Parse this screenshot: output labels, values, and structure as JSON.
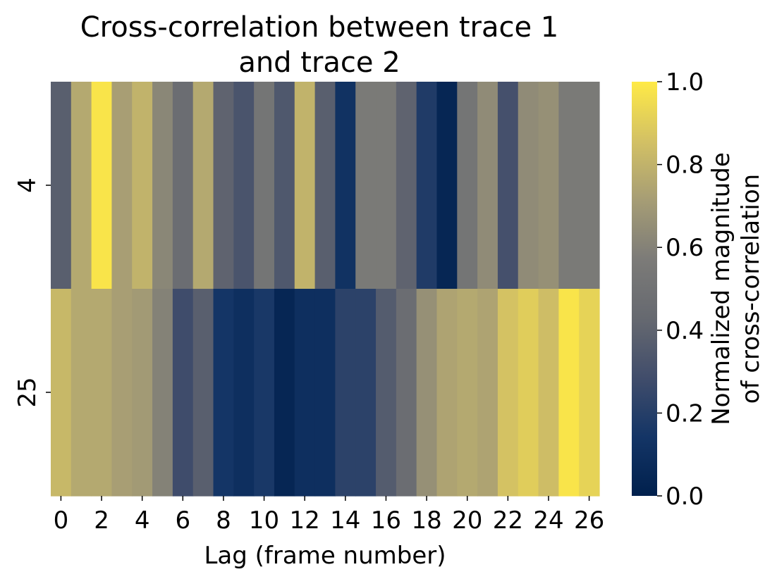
{
  "chart_data": {
    "type": "heatmap",
    "title_lines": [
      "Cross-correlation between trace 1",
      "and trace 2"
    ],
    "xlabel": "Lag (frame number)",
    "ylabel": "",
    "x_categories": [
      0,
      1,
      2,
      3,
      4,
      5,
      6,
      7,
      8,
      9,
      10,
      11,
      12,
      13,
      14,
      15,
      16,
      17,
      18,
      19,
      20,
      21,
      22,
      23,
      24,
      25,
      26
    ],
    "x_tick_labels": [
      "0",
      "2",
      "4",
      "6",
      "8",
      "10",
      "12",
      "14",
      "16",
      "18",
      "20",
      "22",
      "24",
      "26"
    ],
    "y_categories": [
      "4",
      "25"
    ],
    "values": [
      [
        0.38,
        0.76,
        0.98,
        0.72,
        0.8,
        0.62,
        0.46,
        0.76,
        0.4,
        0.32,
        0.52,
        0.34,
        0.8,
        0.38,
        0.12,
        0.56,
        0.56,
        0.4,
        0.18,
        0.04,
        0.52,
        0.64,
        0.3,
        0.64,
        0.66,
        0.56,
        0.56
      ],
      [
        0.82,
        0.76,
        0.76,
        0.72,
        0.7,
        0.6,
        0.28,
        0.38,
        0.14,
        0.1,
        0.16,
        0.04,
        0.1,
        0.1,
        0.22,
        0.22,
        0.36,
        0.46,
        0.66,
        0.74,
        0.76,
        0.74,
        0.86,
        0.9,
        0.84,
        0.98,
        0.92
      ]
    ],
    "colorbar": {
      "label_lines": [
        "Normalized magnitude",
        "of cross-correlation"
      ],
      "min": 0.0,
      "max": 1.0,
      "ticks": [
        0.0,
        0.2,
        0.4,
        0.6,
        0.8,
        1.0
      ],
      "tick_labels": [
        "0.0",
        "0.2",
        "0.4",
        "0.6",
        "0.8",
        "1.0"
      ],
      "colormap": "cividis",
      "colormap_stops": [
        "#00204d",
        "#143566",
        "#414d6b",
        "#666970",
        "#7c7b78",
        "#a69d75",
        "#d3c164",
        "#ffea46"
      ]
    }
  }
}
